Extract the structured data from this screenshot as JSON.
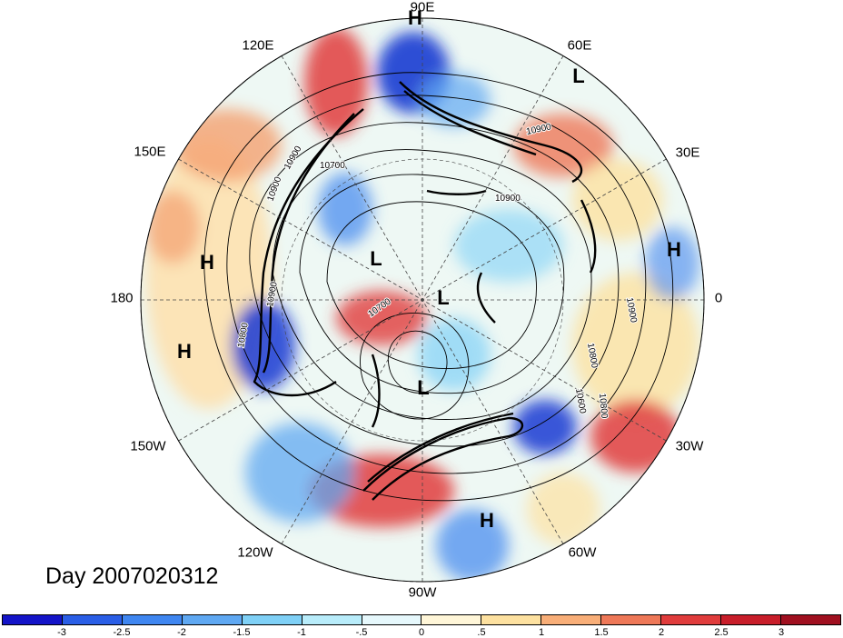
{
  "map": {
    "projection": "north-polar-stereographic",
    "title": "Day 2007020312",
    "longitude_labels": [
      "90E",
      "60E",
      "30E",
      "0",
      "30W",
      "60W",
      "90W",
      "120W",
      "150W",
      "180",
      "150E",
      "120E"
    ],
    "contour_labels": [
      "10900",
      "10900",
      "10900",
      "10800",
      "10700",
      "10600",
      "10800",
      "10900",
      "10700",
      "10800",
      "10900",
      "10900"
    ],
    "pressure_systems": [
      {
        "label": "H",
        "type": "high"
      },
      {
        "label": "L",
        "type": "low"
      },
      {
        "label": "H",
        "type": "high"
      },
      {
        "label": "H",
        "type": "high"
      },
      {
        "label": "L",
        "type": "low"
      },
      {
        "label": "L",
        "type": "low"
      },
      {
        "label": "H",
        "type": "high"
      },
      {
        "label": "L",
        "type": "low"
      },
      {
        "label": "H",
        "type": "high"
      }
    ]
  },
  "colorbar": {
    "ticks": [
      "-3",
      "-2.5",
      "-2",
      "-1.5",
      "-1",
      "-.5",
      "0",
      ".5",
      "1",
      "1.5",
      "2",
      "2.5",
      "3"
    ],
    "colors": [
      "#1414c8",
      "#2a5ee6",
      "#3f86f0",
      "#5fa8f2",
      "#7fd0f6",
      "#b8ecfa",
      "#e6f8fc",
      "#fff6d8",
      "#fde1a0",
      "#f8ae78",
      "#ee7858",
      "#e03c3c",
      "#c81e2a",
      "#a01020"
    ]
  }
}
